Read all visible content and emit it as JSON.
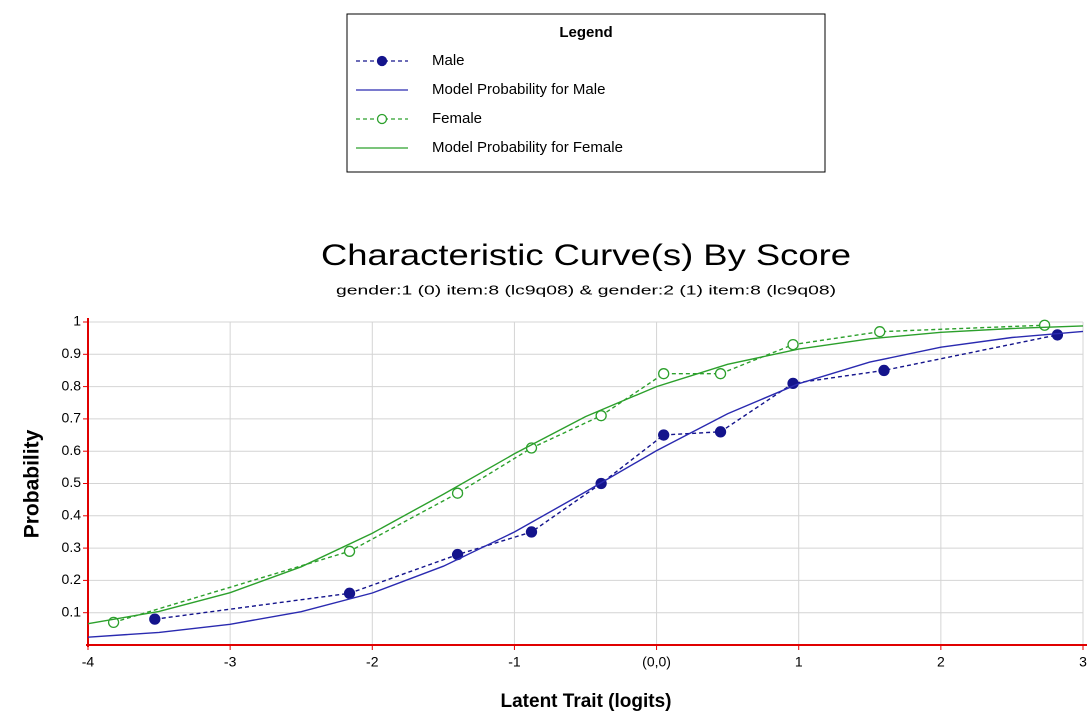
{
  "chart_data": {
    "type": "line",
    "legend_title": "Legend",
    "title": "Characteristic Curve(s) By Score",
    "subtitle": "gender:1 (0) item:8 (lc9q08) & gender:2 (1) item:8 (lc9q08)",
    "x_label": "Latent Trait (logits)",
    "y_label": "Probability",
    "xlim": [
      -4,
      3
    ],
    "ylim": [
      0,
      1
    ],
    "xticks": [
      -4,
      -3,
      -2,
      -1,
      {
        "value": 0,
        "label": "(0,0)"
      },
      1,
      2,
      3
    ],
    "yticks": [
      0.1,
      0.2,
      0.3,
      0.4,
      0.5,
      0.6,
      0.7,
      0.8,
      0.9,
      1
    ],
    "grid": true,
    "series": [
      {
        "name": "Male",
        "color": "#14148c",
        "dashed": true,
        "marker": "filled",
        "x": [
          -3.53,
          -2.16,
          -1.4,
          -0.88,
          -0.39,
          0.05,
          0.45,
          0.96,
          1.6,
          2.82
        ],
        "values": [
          0.08,
          0.16,
          0.28,
          0.35,
          0.5,
          0.65,
          0.66,
          0.81,
          0.85,
          0.96
        ]
      },
      {
        "name": "Model Probability for Male",
        "color": "#2a2ab0",
        "dashed": false,
        "marker": "none",
        "x": [
          -4,
          -3.5,
          -3,
          -2.5,
          -2,
          -1.5,
          -1,
          -0.5,
          0,
          0.5,
          1,
          1.5,
          2,
          2.5,
          3
        ],
        "values": [
          0.024,
          0.039,
          0.064,
          0.103,
          0.161,
          0.244,
          0.35,
          0.474,
          0.602,
          0.716,
          0.809,
          0.876,
          0.922,
          0.952,
          0.971
        ]
      },
      {
        "name": "Female",
        "color": "#2ca02c",
        "dashed": true,
        "marker": "open",
        "x": [
          -3.82,
          -2.16,
          -1.4,
          -0.88,
          -0.39,
          0.05,
          0.45,
          0.96,
          1.57,
          2.73
        ],
        "values": [
          0.07,
          0.29,
          0.47,
          0.61,
          0.71,
          0.84,
          0.84,
          0.93,
          0.97,
          0.99
        ]
      },
      {
        "name": "Model Probability for Female",
        "color": "#2ca02c",
        "dashed": false,
        "marker": "none",
        "x": [
          -4,
          -3.5,
          -3,
          -2.5,
          -2,
          -1.5,
          -1,
          -0.5,
          0,
          0.5,
          1,
          1.5,
          2,
          2.5,
          3
        ],
        "values": [
          0.066,
          0.104,
          0.162,
          0.242,
          0.346,
          0.467,
          0.592,
          0.707,
          0.8,
          0.869,
          0.916,
          0.948,
          0.968,
          0.98,
          0.988
        ]
      }
    ]
  }
}
